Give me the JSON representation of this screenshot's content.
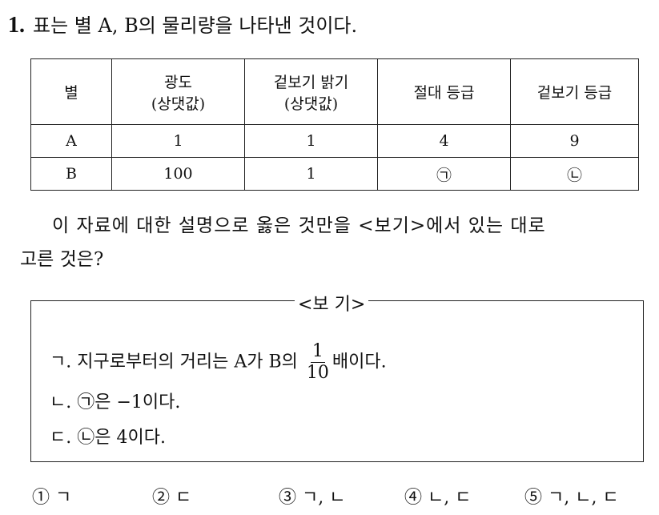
{
  "question": {
    "number": "1.",
    "title": "표는 별 A, B의 물리량을 나타낸 것이다."
  },
  "table": {
    "headers": [
      [
        "별",
        ""
      ],
      [
        "광도",
        "(상댓값)"
      ],
      [
        "겉보기 밝기",
        "(상댓값)"
      ],
      [
        "절대 등급",
        ""
      ],
      [
        "겉보기 등급",
        ""
      ]
    ],
    "rows": [
      [
        "A",
        "1",
        "1",
        "4",
        "9"
      ],
      [
        "B",
        "100",
        "1",
        "㉠",
        "㉡"
      ]
    ]
  },
  "stem": {
    "line1": "이 자료에 대한 설명으로 옳은 것만을 <보기>에서 있는 대로",
    "line2": "고른 것은?"
  },
  "box": {
    "label": "<보 기>",
    "items": [
      {
        "marker": "ㄱ.",
        "text": "지구로부터의 거리는 A가 B의",
        "frac_num": "1",
        "frac_den": "10",
        "text_after": "배이다."
      },
      {
        "marker": "ㄴ.",
        "ref": "㉠",
        "text": "은 −1이다."
      },
      {
        "marker": "ㄷ.",
        "ref": "㉡",
        "text": "은 4이다."
      }
    ]
  },
  "choices": [
    {
      "num": "①",
      "text": "ㄱ"
    },
    {
      "num": "②",
      "text": "ㄷ"
    },
    {
      "num": "③",
      "text": "ㄱ, ㄴ"
    },
    {
      "num": "④",
      "text": "ㄴ, ㄷ"
    },
    {
      "num": "⑤",
      "text": "ㄱ, ㄴ, ㄷ"
    }
  ]
}
